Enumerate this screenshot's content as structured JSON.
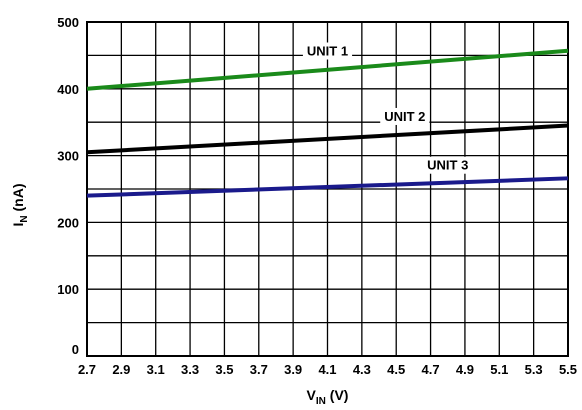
{
  "chart_data": {
    "type": "line",
    "xlabel": {
      "main": "V",
      "sub": "IN",
      "unit": " (V)"
    },
    "ylabel": {
      "main": "I",
      "sub": "N",
      "unit": " (nA)"
    },
    "xlim": [
      2.7,
      5.5
    ],
    "ylim": [
      0,
      500
    ],
    "x_ticks": [
      "2.7",
      "2.9",
      "3.1",
      "3.3",
      "3.5",
      "3.7",
      "3.9",
      "4.1",
      "4.3",
      "4.5",
      "4.7",
      "4.9",
      "5.1",
      "5.3",
      "5.5"
    ],
    "y_ticks": [
      "0",
      "100",
      "200",
      "300",
      "400",
      "500"
    ],
    "minor_y_step": 50,
    "grid": true,
    "series": [
      {
        "name": "UNIT 1",
        "color": "#1a8a1a",
        "x": [
          2.7,
          5.5
        ],
        "y": [
          400,
          457
        ],
        "label_at": [
          4.1,
          455
        ]
      },
      {
        "name": "UNIT 2",
        "color": "#000000",
        "x": [
          2.7,
          5.5
        ],
        "y": [
          305,
          345
        ],
        "label_at": [
          4.55,
          357
        ]
      },
      {
        "name": "UNIT 3",
        "color": "#1a1a8c",
        "x": [
          2.7,
          5.5
        ],
        "y": [
          240,
          266
        ],
        "label_at": [
          4.8,
          284
        ]
      }
    ]
  }
}
